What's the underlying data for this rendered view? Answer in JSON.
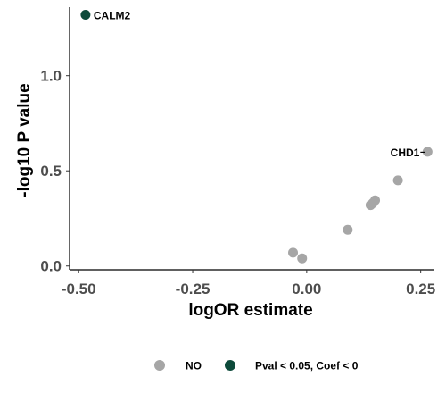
{
  "chart_data": {
    "type": "scatter",
    "xlabel": "logOR estimate",
    "ylabel": "-log10 P value",
    "xlim": [
      -0.52,
      0.28
    ],
    "ylim": [
      -0.02,
      1.36
    ],
    "x_ticks": [
      {
        "value": -0.5,
        "label": "-0.50"
      },
      {
        "value": -0.25,
        "label": "-0.25"
      },
      {
        "value": 0.0,
        "label": "0.00"
      },
      {
        "value": 0.25,
        "label": "0.25"
      }
    ],
    "y_ticks": [
      {
        "value": 0.0,
        "label": "0.0"
      },
      {
        "value": 0.5,
        "label": "0.5"
      },
      {
        "value": 1.0,
        "label": "1.0"
      }
    ],
    "grid": false,
    "legend_position": "bottom",
    "series": [
      {
        "name": "NO",
        "color": "#a6a6a6",
        "points": [
          {
            "x": -0.03,
            "y": 0.07
          },
          {
            "x": -0.01,
            "y": 0.04
          },
          {
            "x": 0.09,
            "y": 0.19
          },
          {
            "x": 0.14,
            "y": 0.32
          },
          {
            "x": 0.145,
            "y": 0.33
          },
          {
            "x": 0.15,
            "y": 0.345
          },
          {
            "x": 0.2,
            "y": 0.45
          },
          {
            "x": 0.265,
            "y": 0.6,
            "label": "CHD1"
          }
        ]
      },
      {
        "name": "Pval < 0.05, Coef < 0",
        "color": "#0d4a3a",
        "points": [
          {
            "x": -0.485,
            "y": 1.32,
            "label": "CALM2"
          }
        ]
      }
    ]
  }
}
